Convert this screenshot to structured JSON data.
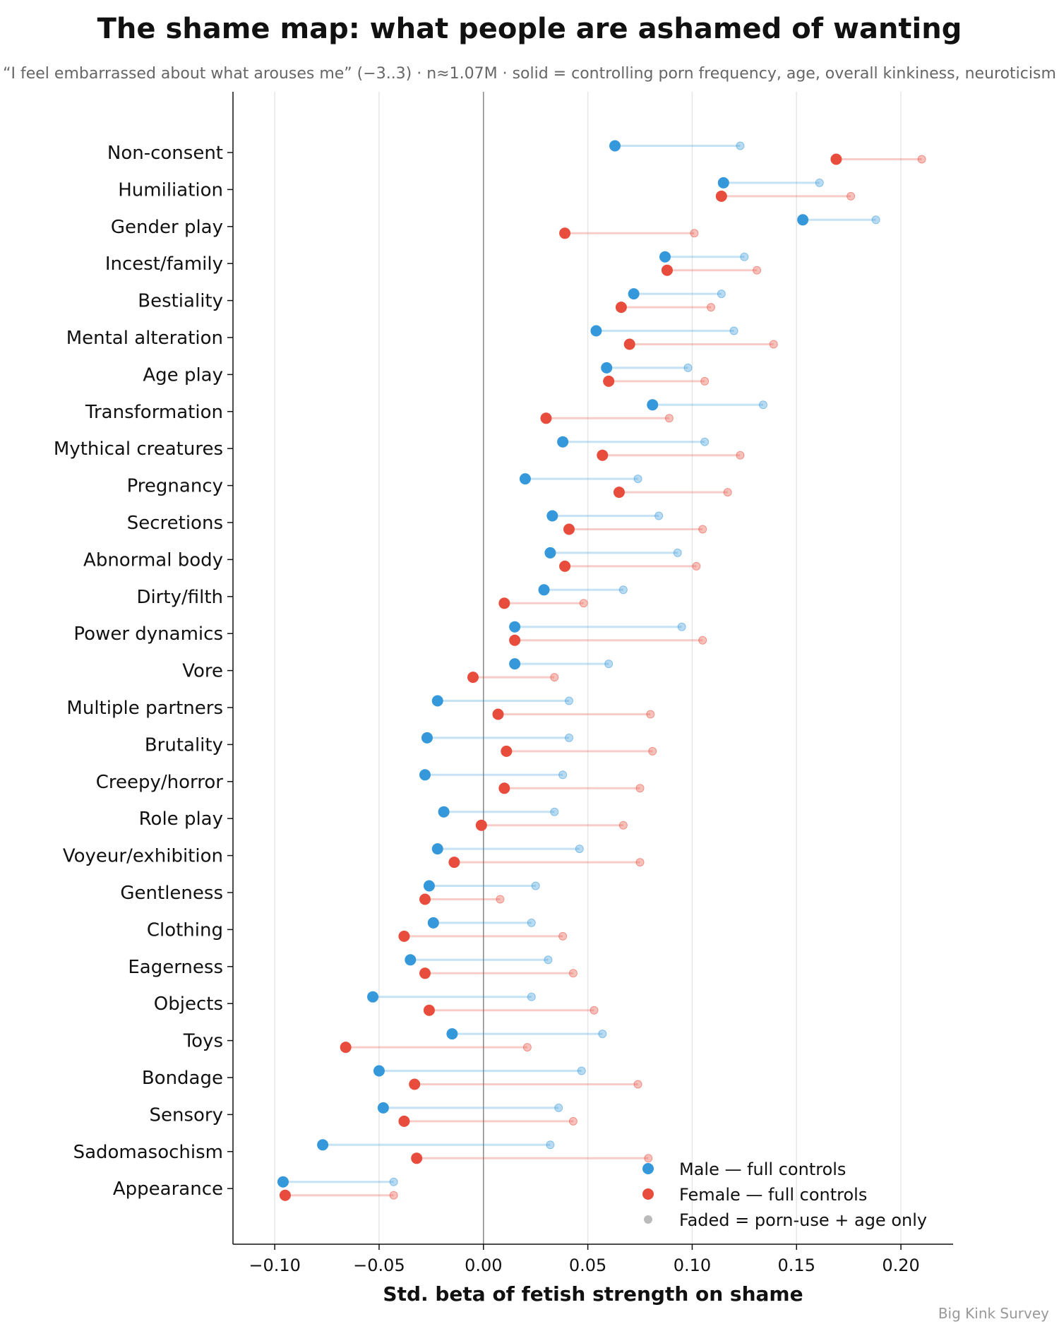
{
  "title": "The shame map: what people are ashamed of wanting",
  "subtitle": "“I feel embarrassed about what arouses me” (−3..3) · n≈1.07M · solid = controlling porn frequency, age, overall kinkiness, neuroticism",
  "credit": "Big Kink Survey",
  "colors": {
    "male": "#3498db",
    "female": "#e74c3c",
    "faded": "#bbbbbb"
  },
  "chart_data": {
    "type": "dumbbell",
    "xlabel": "Std. beta of fetish strength on shame",
    "xlim": [
      -0.12,
      0.225
    ],
    "xticks": [
      -0.1,
      -0.05,
      0.0,
      0.05,
      0.1,
      0.15,
      0.2
    ],
    "xtick_labels": [
      "−0.10",
      "−0.05",
      "0.00",
      "0.05",
      "0.10",
      "0.15",
      "0.20"
    ],
    "grid": "vertical",
    "legend": {
      "position": "bottom-right",
      "entries": [
        "Male — full controls",
        "Female — full controls",
        "Faded = porn-use + age only"
      ]
    },
    "categories": [
      "Non-consent",
      "Humiliation",
      "Gender play",
      "Incest/family",
      "Bestiality",
      "Mental alteration",
      "Age play",
      "Transformation",
      "Mythical creatures",
      "Pregnancy",
      "Secretions",
      "Abnormal body",
      "Dirty/filth",
      "Power dynamics",
      "Vore",
      "Multiple partners",
      "Brutality",
      "Creepy/horror",
      "Role play",
      "Voyeur/exhibition",
      "Gentleness",
      "Clothing",
      "Eagerness",
      "Objects",
      "Toys",
      "Bondage",
      "Sensory",
      "Sadomasochism",
      "Appearance"
    ],
    "series": [
      {
        "name": "Male — full controls",
        "full": [
          0.063,
          0.115,
          0.153,
          0.087,
          0.072,
          0.054,
          0.059,
          0.081,
          0.038,
          0.02,
          0.033,
          0.032,
          0.029,
          0.015,
          0.015,
          -0.022,
          -0.027,
          -0.028,
          -0.019,
          -0.022,
          -0.026,
          -0.024,
          -0.035,
          -0.053,
          -0.015,
          -0.05,
          -0.048,
          -0.077,
          -0.096
        ],
        "partial": [
          0.123,
          0.161,
          0.188,
          0.125,
          0.114,
          0.12,
          0.098,
          0.134,
          0.106,
          0.074,
          0.084,
          0.093,
          0.067,
          0.095,
          0.06,
          0.041,
          0.041,
          0.038,
          0.034,
          0.046,
          0.025,
          0.023,
          0.031,
          0.023,
          0.057,
          0.047,
          0.036,
          0.032,
          -0.043
        ]
      },
      {
        "name": "Female — full controls",
        "full": [
          0.169,
          0.114,
          0.039,
          0.088,
          0.066,
          0.07,
          0.06,
          0.03,
          0.057,
          0.065,
          0.041,
          0.039,
          0.01,
          0.015,
          -0.005,
          0.007,
          0.011,
          0.01,
          -0.001,
          -0.014,
          -0.028,
          -0.038,
          -0.028,
          -0.026,
          -0.066,
          -0.033,
          -0.038,
          -0.032,
          -0.095
        ],
        "partial": [
          0.21,
          0.176,
          0.101,
          0.131,
          0.109,
          0.139,
          0.106,
          0.089,
          0.123,
          0.117,
          0.105,
          0.102,
          0.048,
          0.105,
          0.034,
          0.08,
          0.081,
          0.075,
          0.067,
          0.075,
          0.008,
          0.038,
          0.043,
          0.053,
          0.021,
          0.074,
          0.043,
          0.079,
          -0.043
        ]
      }
    ]
  }
}
